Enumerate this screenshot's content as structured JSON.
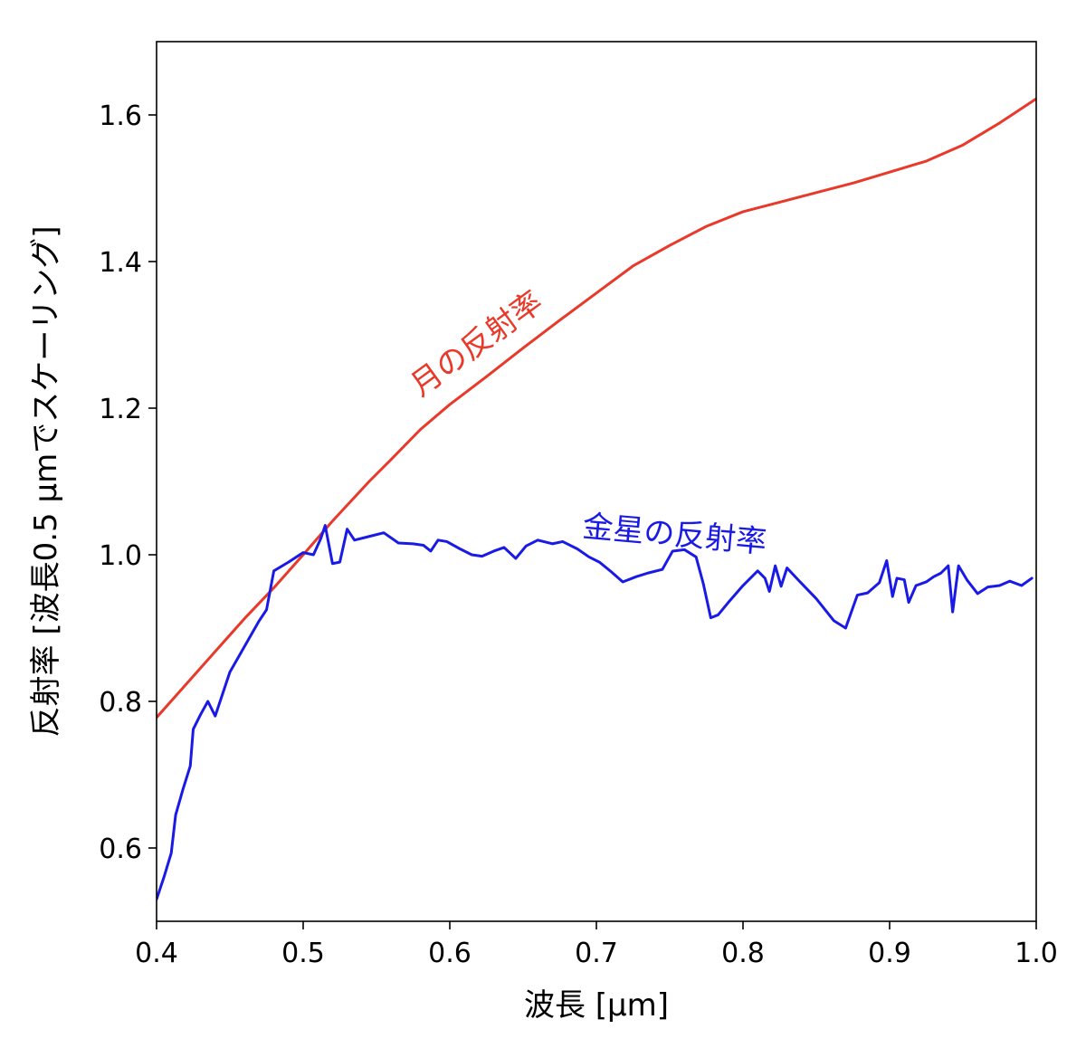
{
  "chart_data": {
    "type": "line",
    "xlabel": "波長 [μm]",
    "ylabel": "反射率 [波長0.5 μmでスケーリング]",
    "xlim": [
      0.4,
      1.0
    ],
    "ylim": [
      0.5,
      1.7
    ],
    "xticks": [
      "0.4",
      "0.5",
      "0.6",
      "0.7",
      "0.8",
      "0.9",
      "1.0"
    ],
    "yticks": [
      "0.6",
      "0.8",
      "1.0",
      "1.2",
      "1.4",
      "1.6"
    ],
    "grid": false,
    "series": [
      {
        "name": "月の反射率",
        "color": "#e8392a",
        "x": [
          0.4,
          0.42,
          0.44,
          0.46,
          0.48,
          0.5,
          0.52,
          0.545,
          0.56,
          0.58,
          0.6,
          0.625,
          0.65,
          0.675,
          0.7,
          0.725,
          0.75,
          0.775,
          0.8,
          0.825,
          0.85,
          0.875,
          0.9,
          0.925,
          0.95,
          0.975,
          1.0
        ],
        "y": [
          0.778,
          0.823,
          0.868,
          0.913,
          0.955,
          1.0,
          1.046,
          1.1,
          1.13,
          1.171,
          1.205,
          1.243,
          1.282,
          1.32,
          1.357,
          1.394,
          1.422,
          1.448,
          1.468,
          1.481,
          1.494,
          1.507,
          1.522,
          1.537,
          1.559,
          1.589,
          1.622
        ]
      },
      {
        "name": "金星の反射率",
        "color": "#1a1ae6",
        "x": [
          0.4,
          0.405,
          0.41,
          0.413,
          0.418,
          0.423,
          0.425,
          0.43,
          0.435,
          0.44,
          0.45,
          0.46,
          0.47,
          0.475,
          0.48,
          0.49,
          0.5,
          0.507,
          0.512,
          0.515,
          0.52,
          0.525,
          0.53,
          0.535,
          0.545,
          0.555,
          0.565,
          0.575,
          0.582,
          0.587,
          0.592,
          0.598,
          0.607,
          0.615,
          0.622,
          0.63,
          0.637,
          0.645,
          0.652,
          0.66,
          0.67,
          0.677,
          0.687,
          0.695,
          0.702,
          0.71,
          0.718,
          0.727,
          0.735,
          0.745,
          0.752,
          0.76,
          0.768,
          0.773,
          0.778,
          0.783,
          0.79,
          0.8,
          0.81,
          0.815,
          0.818,
          0.822,
          0.826,
          0.83,
          0.838,
          0.85,
          0.862,
          0.87,
          0.878,
          0.885,
          0.893,
          0.898,
          0.902,
          0.905,
          0.91,
          0.913,
          0.918,
          0.925,
          0.93,
          0.935,
          0.94,
          0.943,
          0.947,
          0.953,
          0.96,
          0.967,
          0.975,
          0.982,
          0.99,
          0.997
        ],
        "y": [
          0.53,
          0.56,
          0.593,
          0.645,
          0.68,
          0.712,
          0.762,
          0.782,
          0.8,
          0.78,
          0.84,
          0.875,
          0.91,
          0.925,
          0.978,
          0.99,
          1.003,
          1.0,
          1.022,
          1.04,
          0.988,
          0.99,
          1.035,
          1.02,
          1.025,
          1.03,
          1.016,
          1.015,
          1.013,
          1.005,
          1.02,
          1.018,
          1.008,
          1.0,
          0.998,
          1.005,
          1.01,
          0.995,
          1.012,
          1.02,
          1.015,
          1.018,
          1.008,
          0.997,
          0.99,
          0.977,
          0.963,
          0.97,
          0.975,
          0.98,
          1.005,
          1.007,
          0.997,
          0.96,
          0.914,
          0.918,
          0.935,
          0.958,
          0.978,
          0.968,
          0.95,
          0.985,
          0.957,
          0.982,
          0.965,
          0.94,
          0.91,
          0.9,
          0.945,
          0.948,
          0.962,
          0.992,
          0.943,
          0.968,
          0.966,
          0.935,
          0.958,
          0.963,
          0.97,
          0.975,
          0.985,
          0.922,
          0.985,
          0.965,
          0.947,
          0.956,
          0.958,
          0.964,
          0.958,
          0.968
        ]
      }
    ],
    "annotations": [
      {
        "text": "月の反射率",
        "color": "#e8392a",
        "x": 0.58,
        "y": 1.215,
        "rotation": -36
      },
      {
        "text": "金星の反射率",
        "color": "#1a1ae6",
        "x": 0.69,
        "y": 1.025,
        "rotation": 5
      }
    ]
  }
}
